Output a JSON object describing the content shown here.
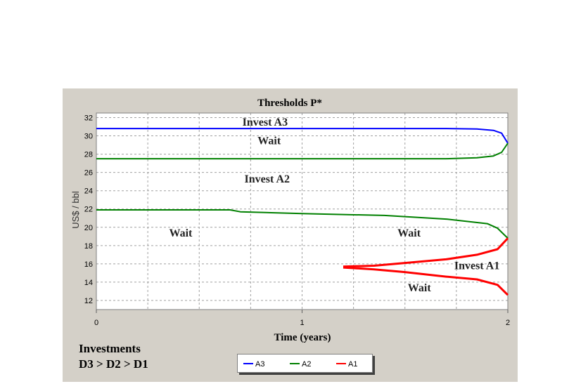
{
  "chart_data": {
    "type": "line",
    "title": "Thresholds P*",
    "xlabel": "Time (years)",
    "ylabel": "US$ / bbl",
    "xlim": [
      0,
      2
    ],
    "ylim": [
      11,
      32.5
    ],
    "x_ticks": [
      "0",
      "1",
      "2"
    ],
    "y_ticks": [
      "12",
      "14",
      "16",
      "18",
      "20",
      "22",
      "24",
      "26",
      "28",
      "30",
      "32"
    ],
    "grid": true,
    "legend_position": "bottom",
    "series": [
      {
        "name": "A3",
        "color": "#0000ff",
        "points": [
          [
            0,
            30.8
          ],
          [
            1.0,
            30.8
          ],
          [
            1.7,
            30.8
          ],
          [
            1.85,
            30.75
          ],
          [
            1.93,
            30.6
          ],
          [
            1.97,
            30.3
          ],
          [
            2.0,
            29.2
          ]
        ]
      },
      {
        "name": "A2",
        "color": "#008000",
        "points": [
          [
            0,
            27.5
          ],
          [
            1.0,
            27.5
          ],
          [
            1.7,
            27.5
          ],
          [
            1.85,
            27.6
          ],
          [
            1.93,
            27.8
          ],
          [
            1.97,
            28.2
          ],
          [
            2.0,
            29.2
          ]
        ]
      },
      {
        "name": "A2",
        "color": "#008000",
        "points": [
          [
            0,
            21.9
          ],
          [
            0.65,
            21.9
          ],
          [
            0.7,
            21.7
          ],
          [
            1.0,
            21.5
          ],
          [
            1.4,
            21.3
          ],
          [
            1.7,
            20.9
          ],
          [
            1.9,
            20.4
          ],
          [
            1.95,
            19.9
          ],
          [
            2.0,
            18.8
          ]
        ]
      },
      {
        "name": "A1",
        "color": "#ff0000",
        "points": [
          [
            1.2,
            15.7
          ],
          [
            1.35,
            15.8
          ],
          [
            1.5,
            16.1
          ],
          [
            1.7,
            16.5
          ],
          [
            1.85,
            17.0
          ],
          [
            1.95,
            17.6
          ],
          [
            2.0,
            18.8
          ]
        ]
      },
      {
        "name": "A1",
        "color": "#ff0000",
        "points": [
          [
            1.2,
            15.6
          ],
          [
            1.35,
            15.4
          ],
          [
            1.5,
            15.1
          ],
          [
            1.7,
            14.6
          ],
          [
            1.85,
            14.3
          ],
          [
            1.95,
            13.7
          ],
          [
            2.0,
            12.6
          ]
        ]
      }
    ],
    "annotations": [
      {
        "text": "Invest A3",
        "x": 0.82,
        "y": 31.1
      },
      {
        "text": "Wait",
        "x": 0.84,
        "y": 29.1
      },
      {
        "text": "Invest A2",
        "x": 0.83,
        "y": 24.9
      },
      {
        "text": "Wait",
        "x": 0.41,
        "y": 19.0
      },
      {
        "text": "Wait",
        "x": 1.52,
        "y": 19.0
      },
      {
        "text": "Invest A1",
        "x": 1.85,
        "y": 15.4
      },
      {
        "text": "Wait",
        "x": 1.57,
        "y": 13.0
      }
    ],
    "legend": [
      {
        "label": "A3",
        "color": "#0000ff"
      },
      {
        "label": "A2",
        "color": "#008000"
      },
      {
        "label": "A1",
        "color": "#ff0000"
      }
    ]
  },
  "note": {
    "line1": "Investments",
    "line2": "D3 > D2 > D1"
  }
}
